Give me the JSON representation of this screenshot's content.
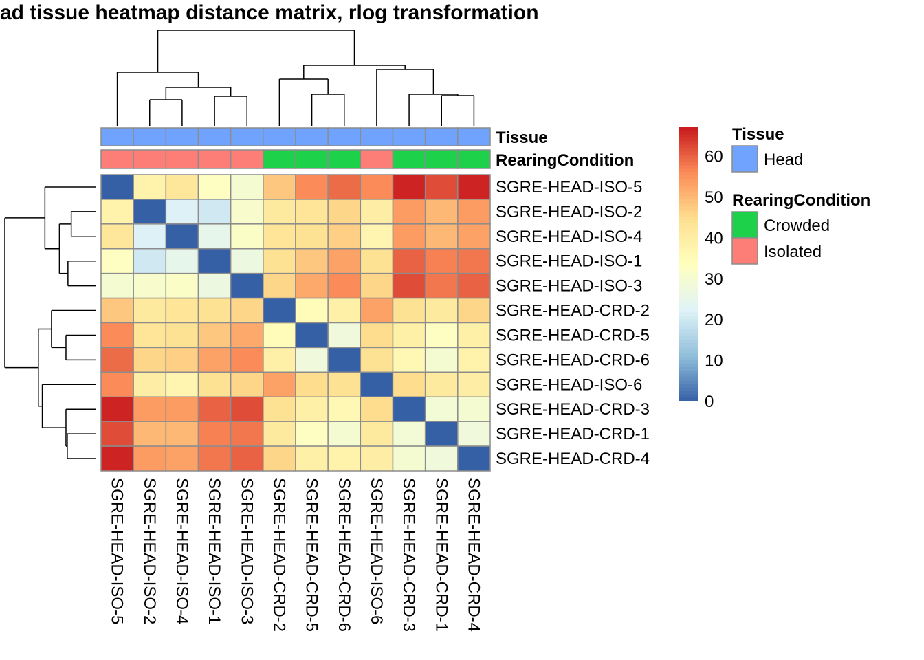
{
  "chart_data": {
    "type": "heatmap",
    "title": "ad tissue heatmap distance matrix, rlog transformation",
    "row_labels": [
      "SGRE-HEAD-ISO-5",
      "SGRE-HEAD-ISO-2",
      "SGRE-HEAD-ISO-4",
      "SGRE-HEAD-ISO-1",
      "SGRE-HEAD-ISO-3",
      "SGRE-HEAD-CRD-2",
      "SGRE-HEAD-CRD-5",
      "SGRE-HEAD-CRD-6",
      "SGRE-HEAD-ISO-6",
      "SGRE-HEAD-CRD-3",
      "SGRE-HEAD-CRD-1",
      "SGRE-HEAD-CRD-4"
    ],
    "col_labels": [
      "SGRE-HEAD-ISO-5",
      "SGRE-HEAD-ISO-2",
      "SGRE-HEAD-ISO-4",
      "SGRE-HEAD-ISO-1",
      "SGRE-HEAD-ISO-3",
      "SGRE-HEAD-CRD-2",
      "SGRE-HEAD-CRD-5",
      "SGRE-HEAD-CRD-6",
      "SGRE-HEAD-ISO-6",
      "SGRE-HEAD-CRD-3",
      "SGRE-HEAD-CRD-1",
      "SGRE-HEAD-CRD-4"
    ],
    "values": [
      [
        0,
        38,
        42,
        33,
        30,
        48,
        56,
        59,
        56,
        66,
        62,
        66
      ],
      [
        38,
        0,
        22,
        20,
        31,
        41,
        43,
        46,
        40,
        54,
        50,
        54
      ],
      [
        42,
        22,
        0,
        25,
        32,
        43,
        44,
        47,
        37,
        54,
        50,
        53
      ],
      [
        33,
        20,
        25,
        0,
        27,
        44,
        48,
        53,
        44,
        60,
        57,
        58
      ],
      [
        30,
        31,
        32,
        27,
        0,
        46,
        52,
        56,
        46,
        62,
        58,
        60
      ],
      [
        48,
        41,
        43,
        44,
        46,
        0,
        35,
        39,
        53,
        44,
        41,
        46
      ],
      [
        56,
        43,
        44,
        48,
        52,
        35,
        0,
        28,
        45,
        39,
        33,
        39
      ],
      [
        59,
        46,
        47,
        53,
        56,
        39,
        28,
        0,
        44,
        36,
        30,
        38
      ],
      [
        56,
        40,
        37,
        44,
        46,
        53,
        45,
        44,
        0,
        45,
        41,
        40
      ],
      [
        66,
        54,
        54,
        60,
        62,
        44,
        39,
        36,
        45,
        0,
        29,
        30
      ],
      [
        62,
        50,
        50,
        57,
        58,
        41,
        33,
        30,
        41,
        29,
        0,
        28
      ],
      [
        66,
        54,
        53,
        58,
        60,
        46,
        39,
        38,
        40,
        30,
        28,
        0
      ]
    ],
    "colorbar": {
      "ticks": [
        "0",
        "10",
        "20",
        "30",
        "40",
        "50",
        "60"
      ],
      "range": [
        0,
        67
      ],
      "colors": [
        "#3560A6",
        "#91BFDB",
        "#E0F3F8",
        "#FFFFBF",
        "#FEE090",
        "#FC8D59",
        "#C8191E"
      ]
    },
    "annotations": {
      "Tissue": [
        "Head",
        "Head",
        "Head",
        "Head",
        "Head",
        "Head",
        "Head",
        "Head",
        "Head",
        "Head",
        "Head",
        "Head"
      ],
      "RearingCondition": [
        "Isolated",
        "Isolated",
        "Isolated",
        "Isolated",
        "Isolated",
        "Crowded",
        "Crowded",
        "Crowded",
        "Isolated",
        "Crowded",
        "Crowded",
        "Crowded"
      ]
    },
    "legend": {
      "tissue_title": "Tissue",
      "tissue_items": [
        {
          "label": "Head",
          "color": "#6FA3FD"
        }
      ],
      "rearing_title": "RearingCondition",
      "rearing_items": [
        {
          "label": "Crowded",
          "color": "#1DD14A"
        },
        {
          "label": "Isolated",
          "color": "#FD7D77"
        }
      ],
      "placement": "right"
    },
    "annotation_row_labels": [
      "Tissue",
      "RearingCondition"
    ]
  }
}
